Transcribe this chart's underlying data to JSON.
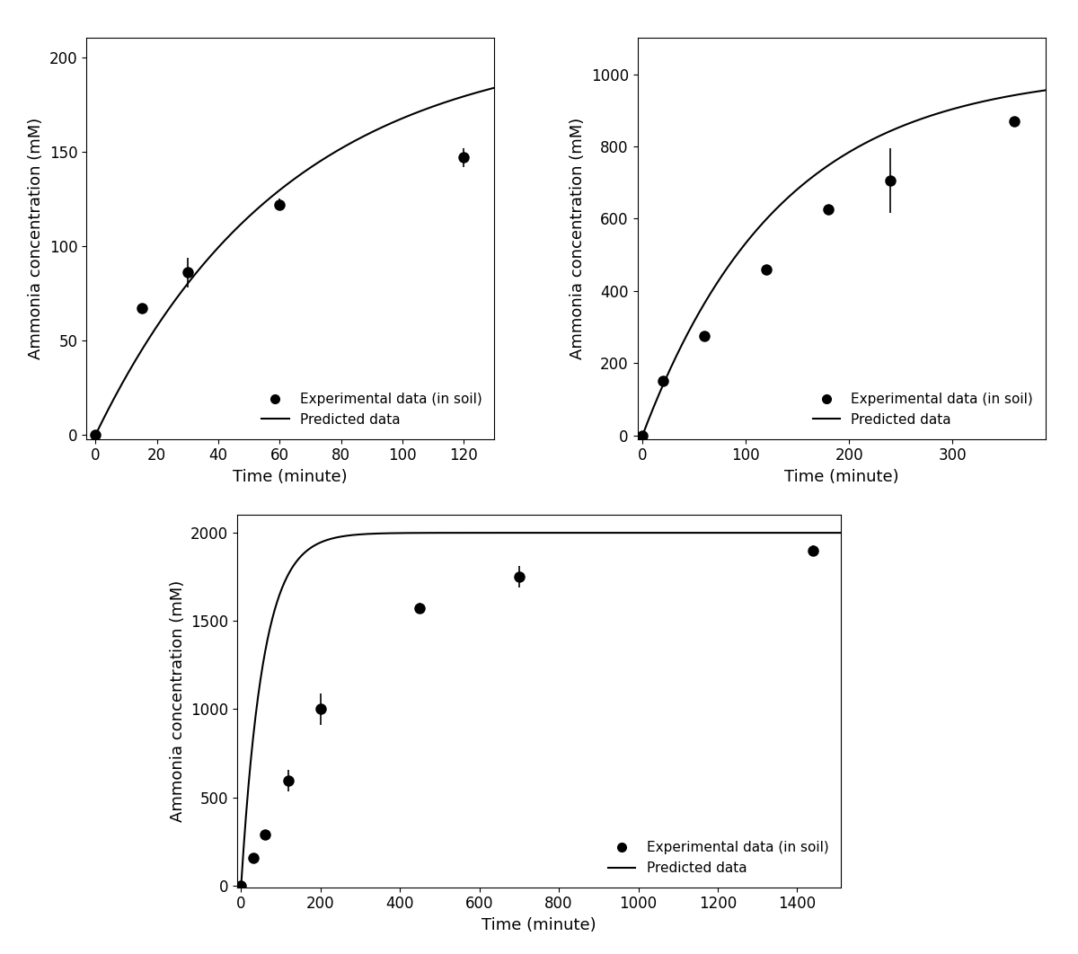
{
  "plot1": {
    "exp_x": [
      0,
      15,
      30,
      60,
      120
    ],
    "exp_y": [
      0,
      67,
      86,
      122,
      147
    ],
    "exp_yerr": [
      0,
      0,
      8,
      3,
      5
    ],
    "curve_params": {
      "A": 210,
      "k": 0.016
    },
    "xlim": [
      -3,
      130
    ],
    "ylim": [
      -2,
      210
    ],
    "xticks": [
      0,
      20,
      40,
      60,
      80,
      100,
      120
    ],
    "yticks": [
      0,
      50,
      100,
      150,
      200
    ],
    "xlabel": "Time (minute)",
    "ylabel": "Ammonia concentration (mM)"
  },
  "plot2": {
    "exp_x": [
      0,
      20,
      60,
      120,
      180,
      240,
      360
    ],
    "exp_y": [
      0,
      150,
      275,
      460,
      625,
      705,
      870
    ],
    "exp_yerr": [
      0,
      0,
      0,
      0,
      0,
      90,
      0
    ],
    "curve_params": {
      "A": 1010,
      "k": 0.0075
    },
    "xlim": [
      -5,
      390
    ],
    "ylim": [
      -10,
      1100
    ],
    "xticks": [
      0,
      100,
      200,
      300
    ],
    "yticks": [
      0,
      200,
      400,
      600,
      800,
      1000
    ],
    "xlabel": "Time (minute)",
    "ylabel": "Ammonia concentration (mM)"
  },
  "plot3": {
    "exp_x": [
      0,
      30,
      60,
      120,
      200,
      450,
      700,
      1440
    ],
    "exp_y": [
      0,
      155,
      290,
      595,
      1000,
      1575,
      1750,
      1900
    ],
    "exp_yerr": [
      0,
      0,
      0,
      60,
      90,
      30,
      60,
      30
    ],
    "curve_params": {
      "A": 2000,
      "k": 0.018
    },
    "xlim": [
      -10,
      1510
    ],
    "ylim": [
      -10,
      2100
    ],
    "xticks": [
      0,
      200,
      400,
      600,
      800,
      1000,
      1200,
      1400
    ],
    "yticks": [
      0,
      500,
      1000,
      1500,
      2000
    ],
    "xlabel": "Time (minute)",
    "ylabel": "Ammonia concentration (mM)"
  },
  "legend_label_exp": "Experimental data (in soil)",
  "legend_label_pred": "Predicted data",
  "marker_color": "#000000",
  "line_color": "#000000",
  "bg_color": "#ffffff",
  "tick_fontsize": 12,
  "label_fontsize": 13,
  "legend_fontsize": 11,
  "marker_size": 9,
  "line_width": 1.5
}
